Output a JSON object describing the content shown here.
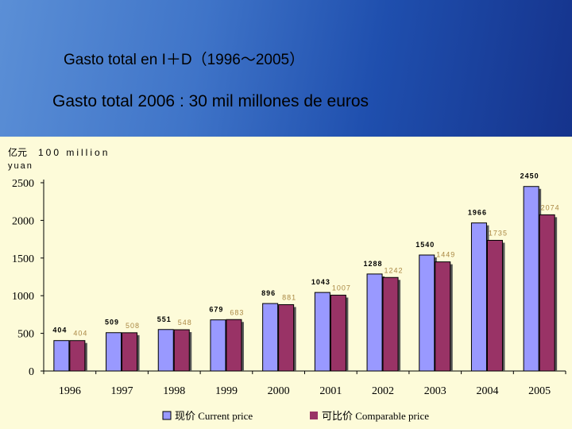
{
  "header": {
    "title": "Gasto total  en I＋D（1996～2005）",
    "subtitle": "Gasto total 2006 : 30 mil millones de euros"
  },
  "chart_data": {
    "type": "bar",
    "unit_label_cn": "亿元",
    "unit_label_en": "100 million",
    "unit_label_yuan": "yuan",
    "categories": [
      "1996",
      "1997",
      "1998",
      "1999",
      "2000",
      "2001",
      "2002",
      "2003",
      "2004",
      "2005"
    ],
    "series": [
      {
        "name": "现价 Current price",
        "color": "#9999ff",
        "values": [
          404,
          509,
          551,
          679,
          896,
          1043,
          1288,
          1540,
          1966,
          2450
        ]
      },
      {
        "name": "可比价 Comparable price",
        "color": "#993366",
        "values": [
          404,
          508,
          548,
          683,
          881,
          1007,
          1242,
          1449,
          1735,
          2074
        ]
      }
    ],
    "data_labels": {
      "current": [
        "404",
        "509",
        "551",
        "679",
        "896",
        "1043",
        "1288",
        "1540",
        "1966",
        "2450"
      ],
      "comparable": [
        "404",
        "508",
        "548",
        "683",
        "881",
        "1007",
        "1242",
        "1449",
        "1735",
        "2074"
      ]
    },
    "yticks": [
      "0",
      "500",
      "1000",
      "1500",
      "2000",
      "2500"
    ],
    "ylim": [
      0,
      2500
    ],
    "legend_position": "bottom"
  }
}
